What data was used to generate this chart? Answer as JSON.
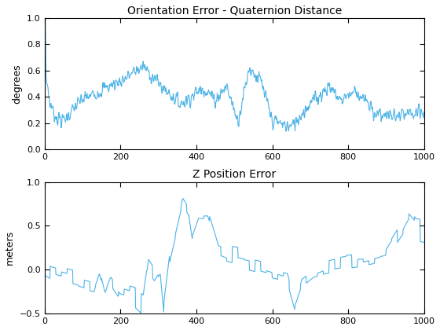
{
  "title1": "Orientation Error - Quaternion Distance",
  "title2": "Z Position Error",
  "ylabel1": "degrees",
  "ylabel2": "meters",
  "xlim": [
    0,
    1000
  ],
  "ylim1": [
    0,
    1
  ],
  "ylim2": [
    -0.5,
    1
  ],
  "line_color": "#4db3e6",
  "line_width": 0.8,
  "bg_color": "#ffffff",
  "yticks1": [
    0,
    0.2,
    0.4,
    0.6,
    0.8,
    1.0
  ],
  "yticks2": [
    -0.5,
    0,
    0.5,
    1.0
  ],
  "xticks": [
    0,
    200,
    400,
    600,
    800,
    1000
  ]
}
